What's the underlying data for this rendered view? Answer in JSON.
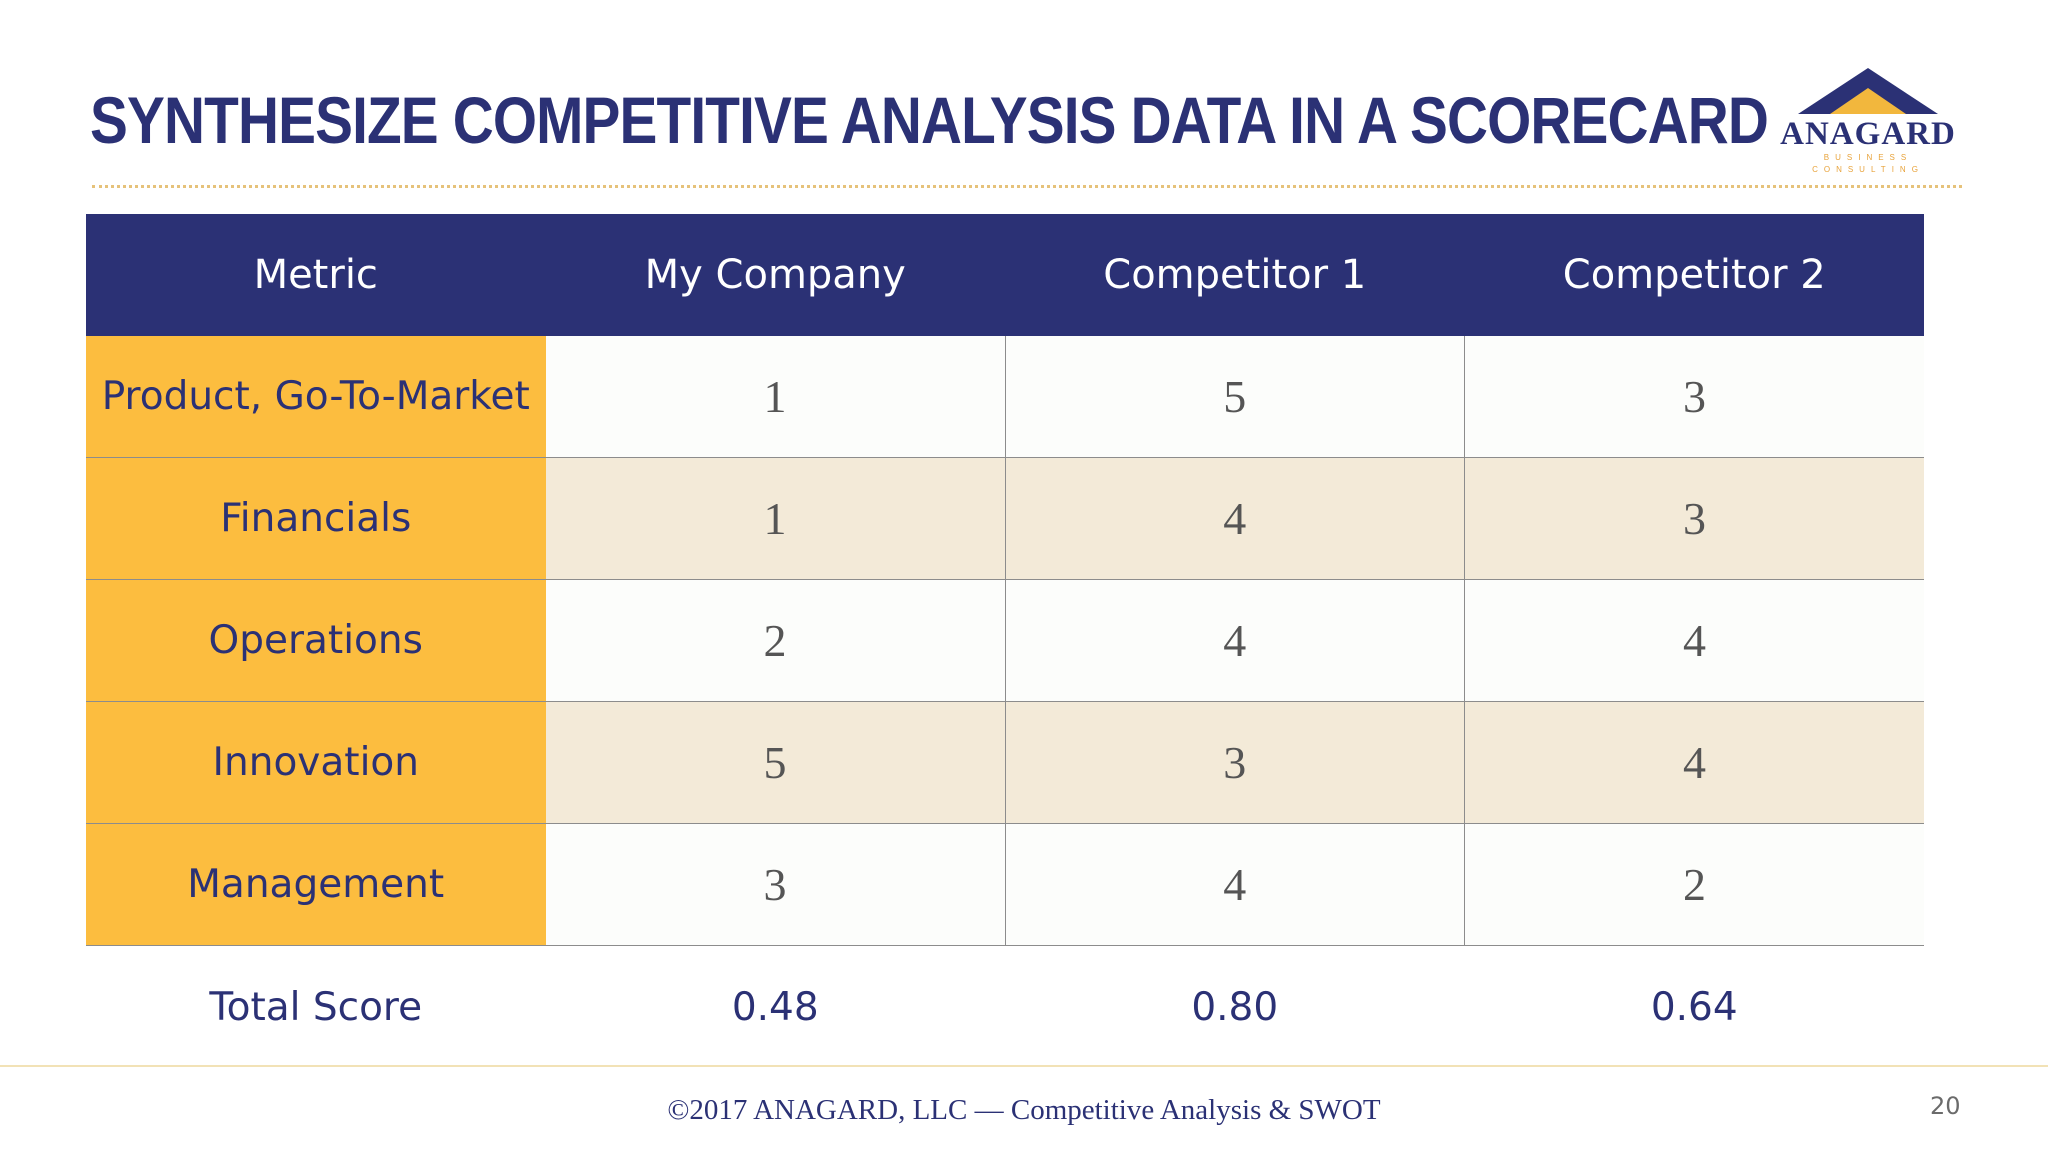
{
  "slide": {
    "title": "SYNTHESIZE COMPETITIVE ANALYSIS DATA IN A SCORECARD",
    "logo": {
      "name": "ANAGARD",
      "tagline": "BUSINESS CONSULTING"
    },
    "footer": "©2017 ANAGARD, LLC — Competitive Analysis & SWOT",
    "page_number": "20"
  },
  "colors": {
    "header_bg": "#2b3175",
    "metric_bg": "#fcbd3f",
    "stripe_bg": "#f3ead8",
    "accent": "#e8a33b"
  },
  "table": {
    "headers": [
      "Metric",
      "My Company",
      "Competitor 1",
      "Competitor 2"
    ],
    "rows": [
      {
        "metric": "Product, Go-To-Market",
        "values": [
          "1",
          "5",
          "3"
        ]
      },
      {
        "metric": "Financials",
        "values": [
          "1",
          "4",
          "3"
        ]
      },
      {
        "metric": "Operations",
        "values": [
          "2",
          "4",
          "4"
        ]
      },
      {
        "metric": "Innovation",
        "values": [
          "5",
          "3",
          "4"
        ]
      },
      {
        "metric": "Management",
        "values": [
          "3",
          "4",
          "2"
        ]
      }
    ],
    "total": {
      "label": "Total Score",
      "values": [
        "0.48",
        "0.80",
        "0.64"
      ]
    }
  }
}
